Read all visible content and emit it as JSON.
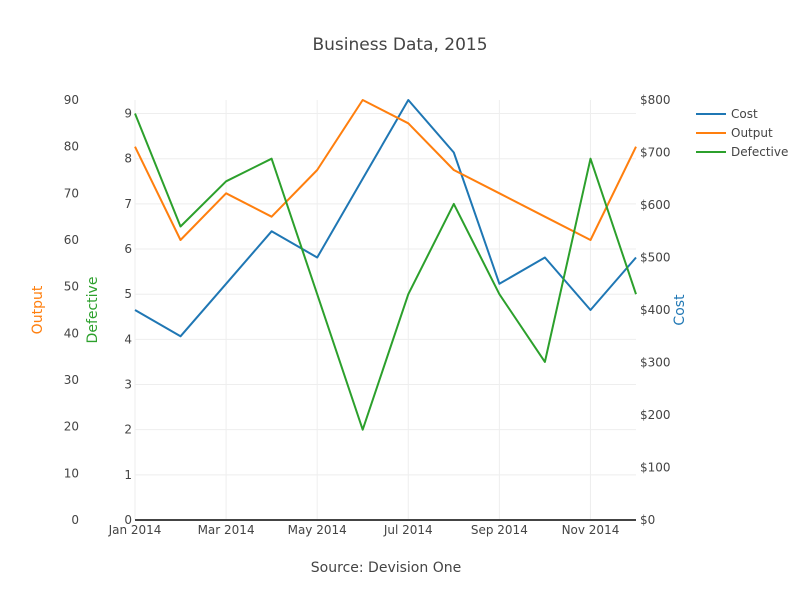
{
  "chart_data": {
    "type": "line",
    "title": "Business Data, 2015",
    "xlabel": "Source: Devision One",
    "x": [
      "2014-01",
      "2014-02",
      "2014-03",
      "2014-04",
      "2014-05",
      "2014-06",
      "2014-07",
      "2014-08",
      "2014-09",
      "2014-10",
      "2014-11",
      "2014-12"
    ],
    "x_ticks": [
      "Jan 2014",
      "Mar 2014",
      "May 2014",
      "Jul 2014",
      "Sep 2014",
      "Nov 2014"
    ],
    "axes": {
      "output": {
        "label": "Output",
        "range": [
          0,
          90
        ],
        "ticks": [
          "0",
          "10",
          "20",
          "30",
          "40",
          "50",
          "60",
          "70",
          "80",
          "90"
        ],
        "color": "#ff7f0e"
      },
      "defective": {
        "label": "Defective",
        "range": [
          0,
          9.3
        ],
        "ticks": [
          "0",
          "1",
          "2",
          "3",
          "4",
          "5",
          "6",
          "7",
          "8",
          "9"
        ],
        "color": "#2ca02c"
      },
      "cost": {
        "label": "Cost",
        "range": [
          0,
          800
        ],
        "ticks": [
          "$0",
          "$100",
          "$200",
          "$300",
          "$400",
          "$500",
          "$600",
          "$700",
          "$800"
        ],
        "color": "#1f77b4"
      }
    },
    "series": [
      {
        "name": "Cost",
        "axis": "cost",
        "color": "#1f77b4",
        "values": [
          400,
          350,
          450,
          550,
          500,
          650,
          800,
          700,
          450,
          500,
          400,
          500
        ]
      },
      {
        "name": "Output",
        "axis": "output",
        "color": "#ff7f0e",
        "values": [
          80,
          60,
          70,
          65,
          75,
          90,
          85,
          75,
          70,
          65,
          60,
          80
        ]
      },
      {
        "name": "Defective",
        "axis": "defective",
        "color": "#2ca02c",
        "values": [
          9,
          6.5,
          7.5,
          8,
          5,
          2,
          5,
          7,
          5,
          3.5,
          8,
          5
        ]
      }
    ],
    "legend_position": "top-right",
    "grid": true
  }
}
